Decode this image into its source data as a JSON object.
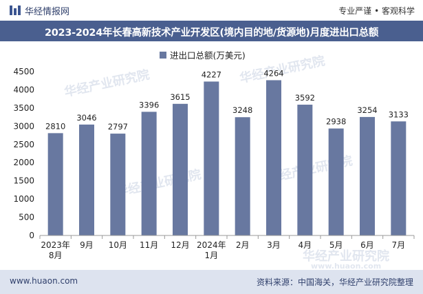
{
  "brand": {
    "name": "华经情报网",
    "tagline": "专业严谨 • 客观科学"
  },
  "footer": {
    "website": "www.huaon.com",
    "source": "资料来源：中国海关，华经产业研究院整理"
  },
  "watermark": {
    "text": "华经产业研究院",
    "url": "www.huaon.com"
  },
  "colors": {
    "bar": "#6878a0",
    "title_bg": "#4a5f8f",
    "footer_bg": "#dde3ef"
  },
  "chart_data": {
    "type": "bar",
    "title": "2023-2024年长春高新技术产业开发区(境内目的地/货源地)月度进出口总额",
    "legend": "进出口总额(万美元)",
    "legend_position": "top-center",
    "categories": [
      [
        "2023年",
        "8月"
      ],
      [
        "9月"
      ],
      [
        "10月"
      ],
      [
        "11月"
      ],
      [
        "12月"
      ],
      [
        "2024年",
        "1月"
      ],
      [
        "2月"
      ],
      [
        "3月"
      ],
      [
        "4月"
      ],
      [
        "5月"
      ],
      [
        "6月"
      ],
      [
        "7月"
      ]
    ],
    "series": [
      {
        "name": "进出口总额(万美元)",
        "values": [
          2810,
          3046,
          2797,
          3396,
          3615,
          4227,
          3248,
          4264,
          3592,
          2938,
          3254,
          3133
        ]
      }
    ],
    "ylim": [
      0,
      4500
    ],
    "yticks": [
      0,
      500,
      1000,
      1500,
      2000,
      2500,
      3000,
      3500,
      4000,
      4500
    ],
    "grid": false
  }
}
